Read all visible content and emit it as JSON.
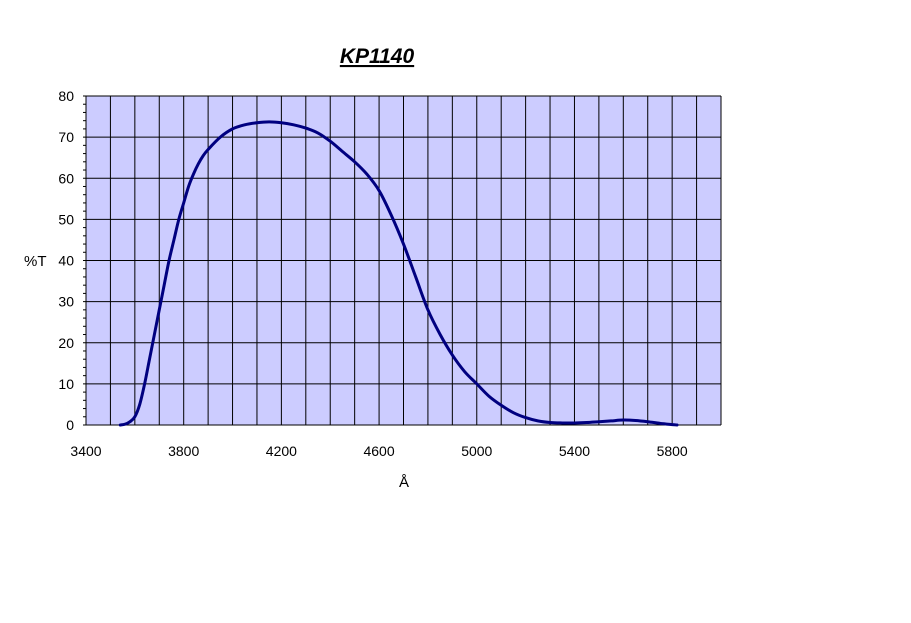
{
  "chart_data": {
    "type": "line",
    "title": "KP1140",
    "xlabel": "Å",
    "ylabel": "%T",
    "xlim": [
      3400,
      6000
    ],
    "ylim": [
      0,
      80
    ],
    "x_ticks": [
      3400,
      3800,
      4200,
      4600,
      5000,
      5400,
      5800
    ],
    "y_ticks": [
      0,
      10,
      20,
      30,
      40,
      50,
      60,
      70,
      80
    ],
    "grid": true,
    "legend": "none",
    "colors": {
      "plot_bg": "#ccccff",
      "grid": "#000000",
      "line": "#000080"
    },
    "series": [
      {
        "x": [
          3540,
          3560,
          3580,
          3600,
          3620,
          3640,
          3660,
          3680,
          3700,
          3720,
          3740,
          3760,
          3780,
          3800,
          3820,
          3840,
          3860,
          3880,
          3900,
          3950,
          4000,
          4050,
          4100,
          4150,
          4200,
          4250,
          4300,
          4350,
          4400,
          4450,
          4500,
          4550,
          4600,
          4650,
          4700,
          4750,
          4800,
          4850,
          4900,
          4950,
          5000,
          5050,
          5100,
          5150,
          5200,
          5250,
          5300,
          5350,
          5400,
          5450,
          5500,
          5550,
          5600,
          5650,
          5700,
          5750,
          5800,
          5820
        ],
        "y": [
          0,
          0.2,
          0.8,
          2,
          5,
          10,
          16,
          22,
          28,
          34,
          40,
          45,
          50,
          54,
          58,
          61,
          63.5,
          65.5,
          67,
          70,
          72,
          73,
          73.5,
          73.7,
          73.5,
          73,
          72.2,
          71,
          69,
          66.5,
          64,
          61,
          57,
          51,
          44,
          36,
          28,
          22,
          17,
          13,
          10,
          7,
          4.8,
          3,
          1.8,
          1,
          0.6,
          0.5,
          0.5,
          0.6,
          0.8,
          1,
          1.2,
          1.1,
          0.8,
          0.4,
          0.1,
          0
        ]
      }
    ]
  }
}
